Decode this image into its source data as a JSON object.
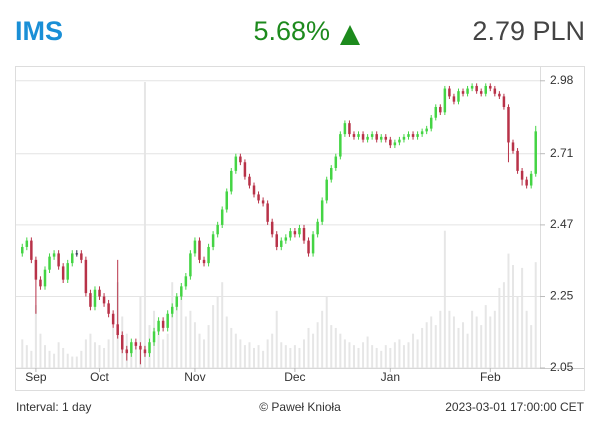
{
  "header": {
    "ticker": "IMS",
    "change": "5.68%",
    "price": "2.79 PLN"
  },
  "footer": {
    "interval": "Interval: 1 day",
    "copyright": "© Paweł Knioła",
    "timestamp": "2023-03-01 17:00:00 CET"
  },
  "chart_data": {
    "type": "candlestick",
    "open": [
      2.38,
      2.4,
      2.42,
      2.36,
      2.3,
      2.28,
      2.33,
      2.37,
      2.38,
      2.34,
      2.3,
      2.35,
      2.38,
      2.38,
      2.36,
      2.26,
      2.22,
      2.27,
      2.25,
      2.23,
      2.2,
      2.17,
      2.14,
      2.1,
      2.09,
      2.12,
      2.11,
      2.1,
      2.09,
      2.12,
      2.15,
      2.18,
      2.16,
      2.2,
      2.22,
      2.25,
      2.28,
      2.31,
      2.38,
      2.42,
      2.36,
      2.35,
      2.4,
      2.44,
      2.47,
      2.52,
      2.58,
      2.65,
      2.7,
      2.68,
      2.63,
      2.6,
      2.57,
      2.55,
      2.54,
      2.48,
      2.44,
      2.4,
      2.42,
      2.43,
      2.45,
      2.44,
      2.46,
      2.42,
      2.38,
      2.44,
      2.48,
      2.55,
      2.62,
      2.66,
      2.7,
      2.78,
      2.82,
      2.78,
      2.77,
      2.78,
      2.76,
      2.77,
      2.78,
      2.76,
      2.77,
      2.76,
      2.74,
      2.75,
      2.76,
      2.77,
      2.78,
      2.77,
      2.78,
      2.79,
      2.8,
      2.84,
      2.88,
      2.86,
      2.95,
      2.92,
      2.9,
      2.94,
      2.93,
      2.95,
      2.96,
      2.94,
      2.93,
      2.96,
      2.95,
      2.93,
      2.92,
      2.88,
      2.75,
      2.72,
      2.65,
      2.62,
      2.6,
      2.64
    ],
    "high": [
      2.41,
      2.43,
      2.43,
      2.37,
      2.31,
      2.34,
      2.38,
      2.39,
      2.39,
      2.35,
      2.36,
      2.39,
      2.39,
      2.39,
      2.37,
      2.27,
      2.28,
      2.28,
      2.26,
      2.24,
      2.21,
      2.36,
      2.15,
      2.11,
      2.13,
      2.13,
      2.12,
      2.11,
      2.13,
      2.16,
      2.19,
      2.19,
      2.21,
      2.23,
      2.26,
      2.29,
      2.32,
      2.39,
      2.43,
      2.43,
      2.37,
      2.41,
      2.45,
      2.48,
      2.53,
      2.59,
      2.66,
      2.71,
      2.71,
      2.69,
      2.64,
      2.61,
      2.58,
      2.56,
      2.55,
      2.49,
      2.45,
      2.43,
      2.44,
      2.46,
      2.46,
      2.47,
      2.47,
      2.43,
      2.45,
      2.49,
      2.56,
      2.63,
      2.67,
      2.71,
      2.79,
      2.83,
      2.83,
      2.79,
      2.79,
      2.79,
      2.78,
      2.79,
      2.79,
      2.78,
      2.78,
      2.77,
      2.76,
      2.77,
      2.78,
      2.79,
      2.79,
      2.79,
      2.8,
      2.81,
      2.85,
      2.89,
      2.89,
      2.96,
      2.96,
      2.93,
      2.95,
      2.95,
      2.96,
      2.97,
      2.97,
      2.95,
      2.97,
      2.97,
      2.96,
      2.94,
      2.93,
      2.89,
      2.76,
      2.73,
      2.66,
      2.63,
      2.65,
      2.81
    ],
    "low": [
      2.37,
      2.39,
      2.35,
      2.2,
      2.27,
      2.27,
      2.32,
      2.36,
      2.33,
      2.29,
      2.29,
      2.34,
      2.37,
      2.35,
      2.25,
      2.21,
      2.21,
      2.24,
      2.22,
      2.19,
      2.16,
      2.13,
      2.09,
      2.07,
      2.08,
      2.1,
      2.06,
      2.08,
      2.08,
      2.11,
      2.14,
      2.15,
      2.15,
      2.19,
      2.21,
      2.24,
      2.27,
      2.3,
      2.37,
      2.35,
      2.34,
      2.34,
      2.39,
      2.43,
      2.46,
      2.51,
      2.57,
      2.64,
      2.67,
      2.62,
      2.59,
      2.56,
      2.54,
      2.53,
      2.47,
      2.43,
      2.39,
      2.39,
      2.41,
      2.42,
      2.43,
      2.43,
      2.41,
      2.37,
      2.37,
      2.43,
      2.47,
      2.54,
      2.61,
      2.65,
      2.69,
      2.77,
      2.77,
      2.76,
      2.76,
      2.75,
      2.75,
      2.76,
      2.75,
      2.75,
      2.75,
      2.73,
      2.73,
      2.74,
      2.75,
      2.76,
      2.76,
      2.76,
      2.77,
      2.78,
      2.79,
      2.83,
      2.85,
      2.85,
      2.91,
      2.89,
      2.89,
      2.92,
      2.92,
      2.94,
      2.93,
      2.92,
      2.92,
      2.94,
      2.92,
      2.91,
      2.87,
      2.68,
      2.71,
      2.64,
      2.6,
      2.59,
      2.59,
      2.63
    ],
    "close": [
      2.4,
      2.42,
      2.36,
      2.3,
      2.28,
      2.33,
      2.37,
      2.38,
      2.34,
      2.3,
      2.35,
      2.38,
      2.38,
      2.36,
      2.26,
      2.22,
      2.27,
      2.25,
      2.23,
      2.2,
      2.17,
      2.14,
      2.1,
      2.09,
      2.12,
      2.11,
      2.1,
      2.09,
      2.12,
      2.15,
      2.18,
      2.16,
      2.2,
      2.22,
      2.25,
      2.28,
      2.31,
      2.38,
      2.42,
      2.36,
      2.35,
      2.4,
      2.44,
      2.47,
      2.52,
      2.58,
      2.65,
      2.7,
      2.68,
      2.63,
      2.6,
      2.57,
      2.55,
      2.54,
      2.48,
      2.44,
      2.4,
      2.42,
      2.43,
      2.45,
      2.44,
      2.46,
      2.42,
      2.38,
      2.44,
      2.48,
      2.55,
      2.62,
      2.66,
      2.7,
      2.78,
      2.82,
      2.78,
      2.77,
      2.78,
      2.76,
      2.77,
      2.78,
      2.76,
      2.77,
      2.76,
      2.74,
      2.75,
      2.76,
      2.77,
      2.78,
      2.77,
      2.78,
      2.79,
      2.8,
      2.84,
      2.88,
      2.86,
      2.95,
      2.92,
      2.9,
      2.94,
      2.93,
      2.95,
      2.96,
      2.94,
      2.93,
      2.96,
      2.95,
      2.93,
      2.92,
      2.88,
      2.75,
      2.72,
      2.65,
      2.62,
      2.6,
      2.64,
      2.79
    ],
    "volume": [
      10,
      8,
      6,
      22,
      12,
      8,
      6,
      5,
      9,
      7,
      5,
      4,
      4,
      6,
      10,
      12,
      9,
      8,
      7,
      10,
      14,
      30,
      18,
      12,
      9,
      8,
      25,
      100,
      15,
      20,
      14,
      10,
      12,
      30,
      22,
      28,
      18,
      20,
      16,
      12,
      10,
      15,
      22,
      25,
      30,
      18,
      14,
      12,
      10,
      8,
      9,
      7,
      8,
      6,
      10,
      12,
      20,
      9,
      8,
      7,
      8,
      7,
      10,
      14,
      12,
      16,
      20,
      25,
      15,
      14,
      12,
      10,
      9,
      8,
      7,
      9,
      11,
      8,
      7,
      6,
      8,
      7,
      9,
      10,
      8,
      9,
      12,
      10,
      14,
      16,
      18,
      15,
      20,
      48,
      20,
      18,
      14,
      16,
      12,
      20,
      18,
      15,
      22,
      18,
      20,
      28,
      30,
      40,
      36,
      25,
      35,
      20,
      15,
      37
    ],
    "up_color": "#44d444",
    "down_color": "#b83248",
    "flat_color": "#1c2a48",
    "volume_color": "#e6e6e6",
    "ylim": [
      2.05,
      3.03
    ],
    "log_y": true,
    "yticks": [
      2.05,
      2.25,
      2.47,
      2.71,
      2.98
    ],
    "xticks": [
      {
        "value": 3,
        "label": "Sep"
      },
      {
        "value": 17,
        "label": "Oct"
      },
      {
        "value": 38,
        "label": "Nov"
      },
      {
        "value": 60,
        "label": "Dec"
      },
      {
        "value": 81,
        "label": "Jan"
      },
      {
        "value": 103,
        "label": "Feb"
      }
    ],
    "grid": true
  }
}
